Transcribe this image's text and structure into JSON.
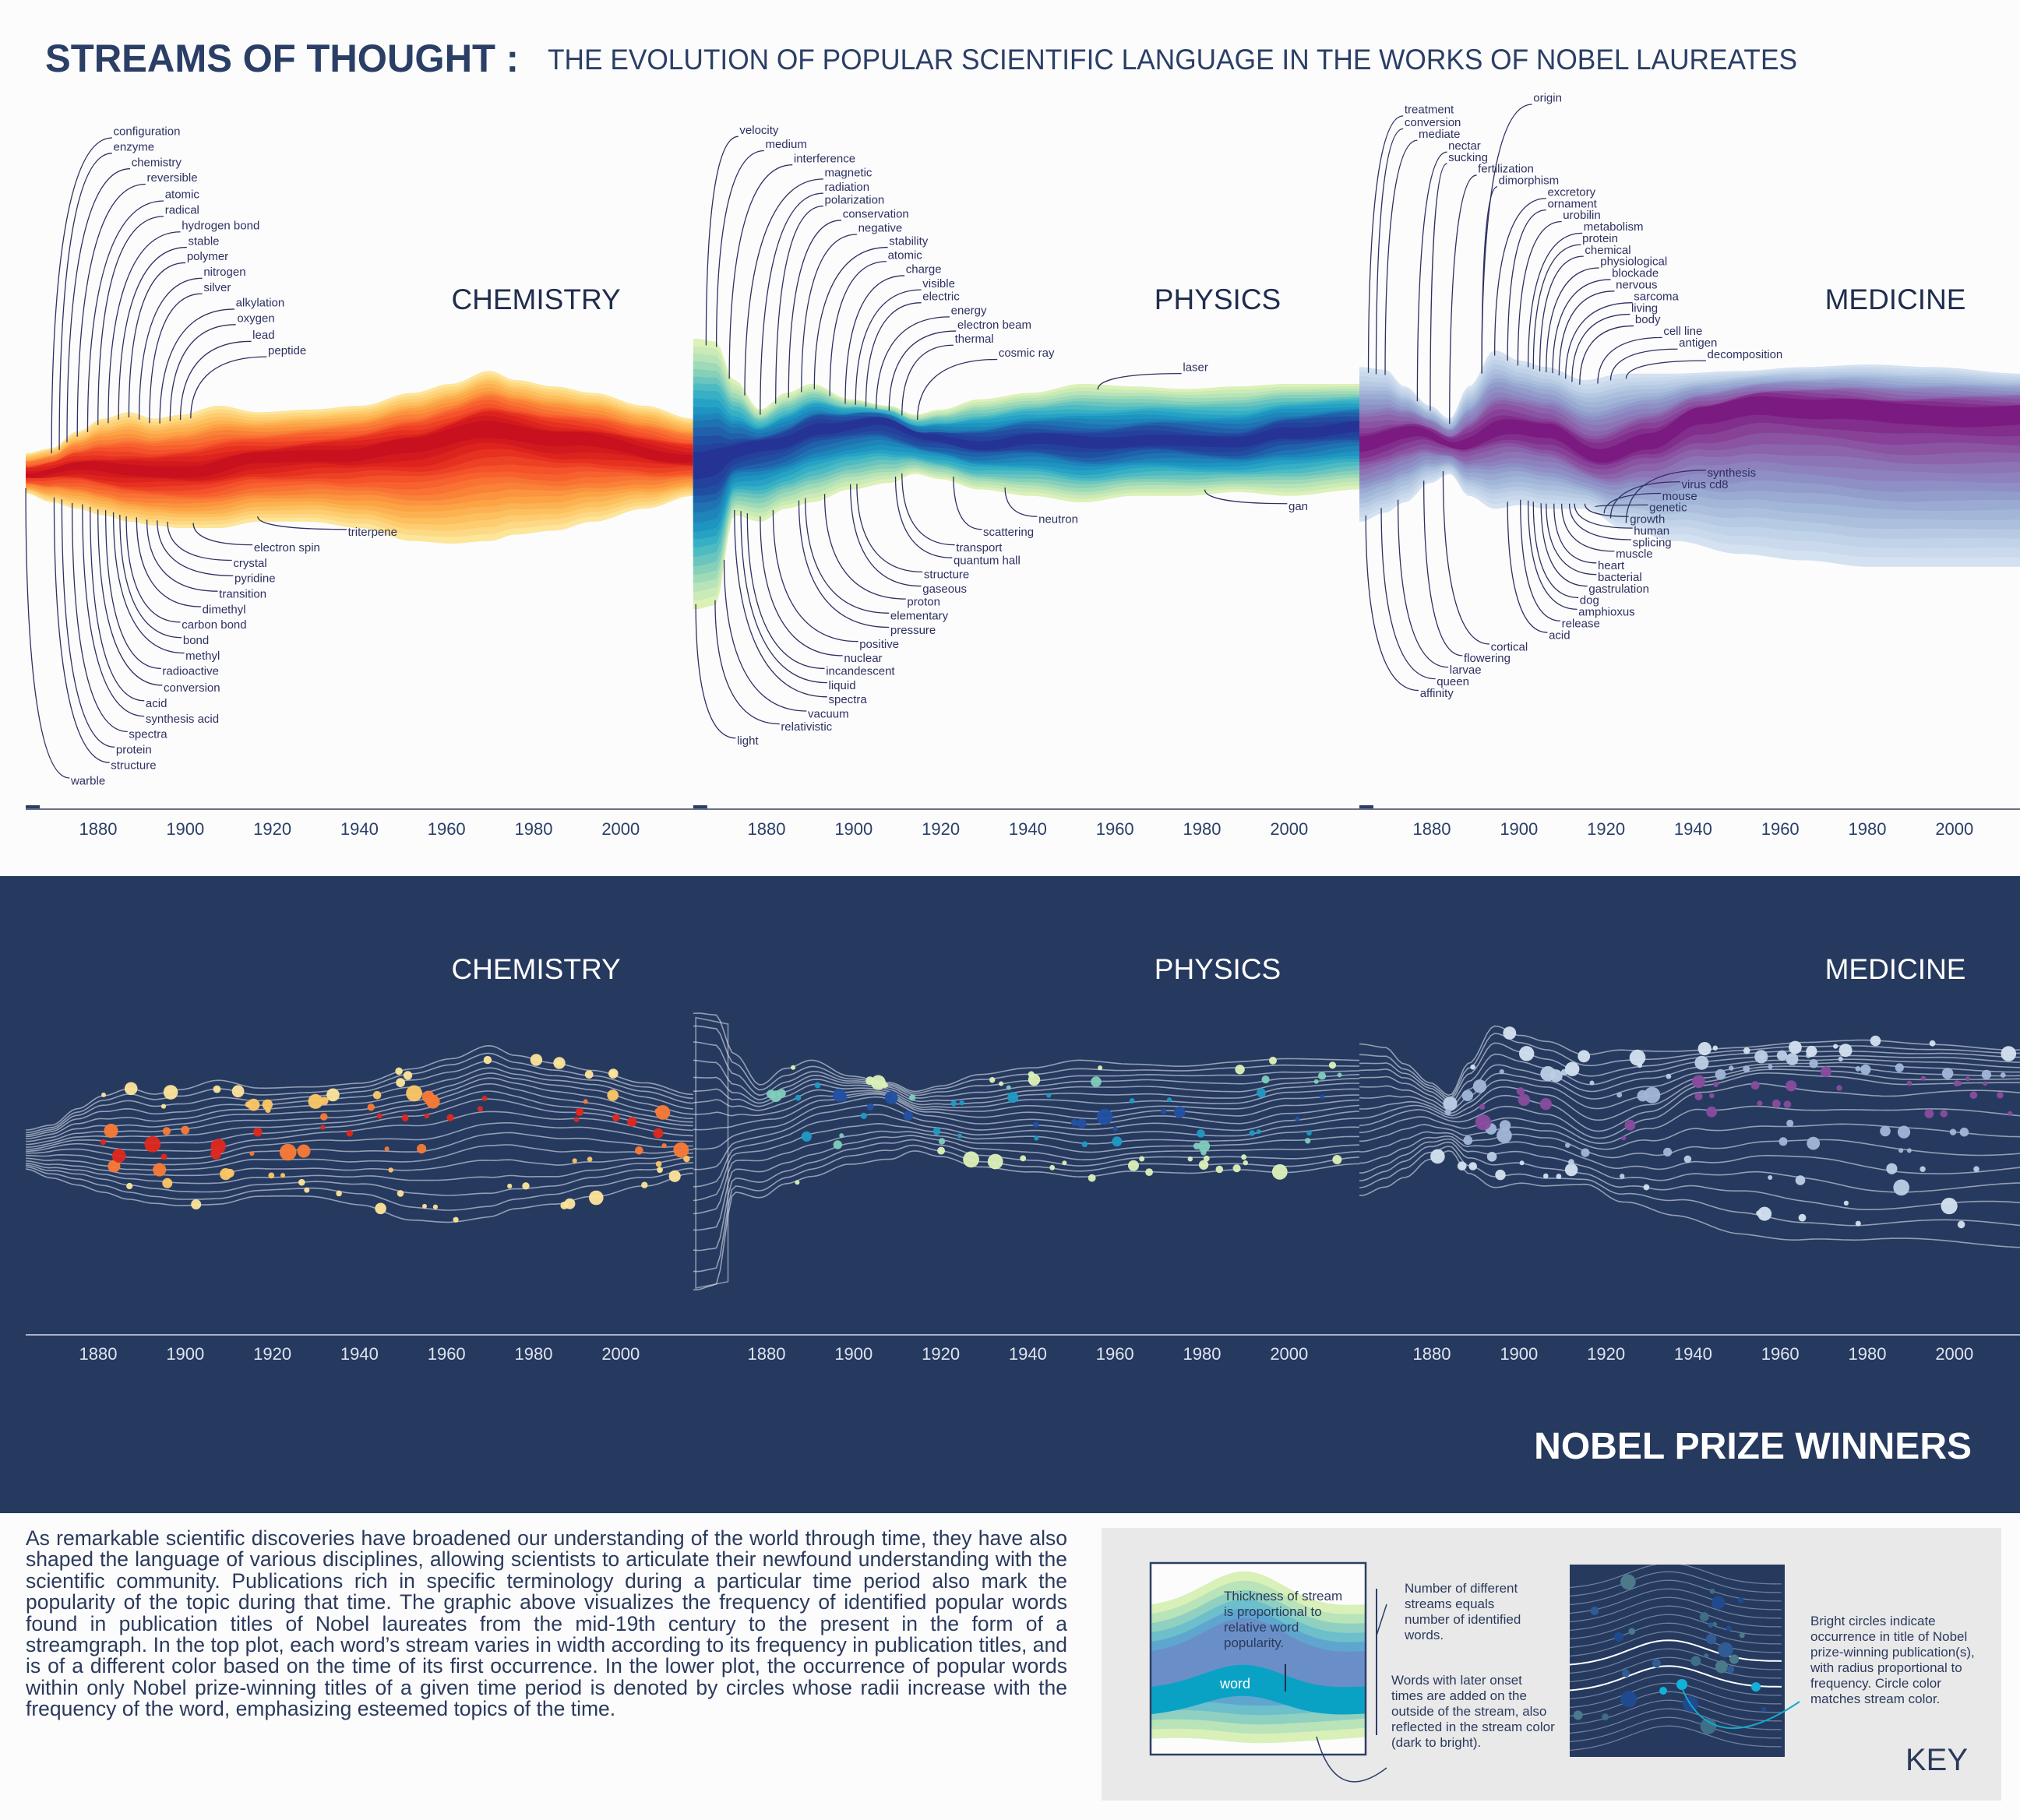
{
  "title": {
    "main": "STREAMS OF THOUGHT :",
    "subtitle": "THE EVOLUTION OF POPULAR SCIENTIFIC LANGUAGE IN THE WORKS OF NOBEL LAUREATES",
    "color": "#2b3f66"
  },
  "chart_data": [
    {
      "type": "area",
      "plot": "top",
      "title": "CHEMISTRY",
      "x_ticks": [
        1880,
        1900,
        1920,
        1940,
        1960,
        1980,
        2000
      ],
      "palette": [
        "#c8101e",
        "#e2281d",
        "#f5512a",
        "#fa7a35",
        "#fca445",
        "#fdc765",
        "#fde59a"
      ],
      "words_top": [
        "configuration",
        "enzyme",
        "chemistry",
        "reversible",
        "atomic",
        "radical",
        "hydrogen bond",
        "stable",
        "polymer",
        "nitrogen",
        "silver",
        "alkylation",
        "oxygen",
        "lead",
        "peptide"
      ],
      "words_bottom": [
        "triterpene",
        "electron spin",
        "crystal",
        "pyridine",
        "transition",
        "dimethyl",
        "carbon bond",
        "bond",
        "methyl",
        "radioactive",
        "conversion",
        "acid",
        "synthesis acid",
        "spectra",
        "protein",
        "structure",
        "warble"
      ]
    },
    {
      "type": "area",
      "plot": "top",
      "title": "PHYSICS",
      "x_ticks": [
        1880,
        1900,
        1920,
        1940,
        1960,
        1980,
        2000
      ],
      "palette": [
        "#253494",
        "#2250a3",
        "#1f78b4",
        "#1d9bc4",
        "#41b6c4",
        "#7fcdbb",
        "#b5e2b6",
        "#dcf1b8"
      ],
      "words_top": [
        "velocity",
        "medium",
        "interference",
        "magnetic",
        "radiation",
        "polarization",
        "conservation",
        "negative",
        "stability",
        "atomic",
        "charge",
        "visible",
        "electric",
        "energy",
        "electron beam",
        "thermal",
        "cosmic ray",
        "laser"
      ],
      "words_bottom": [
        "neutron",
        "gan",
        "scattering",
        "transport",
        "quantum hall",
        "structure",
        "gaseous",
        "proton",
        "elementary",
        "pressure",
        "positive",
        "nuclear",
        "incandescent",
        "liquid",
        "spectra",
        "vacuum",
        "relativistic",
        "light"
      ]
    },
    {
      "type": "area",
      "plot": "top",
      "title": "MEDICINE",
      "x_ticks": [
        1880,
        1900,
        1920,
        1940,
        1960,
        1980,
        2000
      ],
      "palette": [
        "#7b1a80",
        "#8a4c9e",
        "#8c74b6",
        "#8f97c9",
        "#a2b6d8",
        "#bccfe6",
        "#d4e1f0"
      ],
      "words_top": [
        "origin",
        "treatment",
        "conversion",
        "mediate",
        "nectar",
        "sucking",
        "fertilization",
        "dimorphism",
        "excretory",
        "ornament",
        "urobilin",
        "metabolism",
        "protein",
        "chemical",
        "physiological",
        "blockade",
        "nervous",
        "sarcoma",
        "living",
        "body",
        "cell line",
        "antigen",
        "decomposition"
      ],
      "words_bottom": [
        "synthesis",
        "virus cd8",
        "mouse",
        "genetic",
        "growth",
        "human",
        "splicing",
        "muscle",
        "heart",
        "bacterial",
        "gastrulation",
        "dog",
        "amphioxus",
        "release",
        "acid",
        "cortical",
        "flowering",
        "larvae",
        "queen",
        "affinity"
      ]
    },
    {
      "type": "scatter",
      "plot": "bottom",
      "title": "CHEMISTRY",
      "x_ticks": [
        1880,
        1900,
        1920,
        1940,
        1960,
        1980,
        2000
      ]
    },
    {
      "type": "scatter",
      "plot": "bottom",
      "title": "PHYSICS",
      "x_ticks": [
        1880,
        1900,
        1920,
        1940,
        1960,
        1980,
        2000
      ]
    },
    {
      "type": "scatter",
      "plot": "bottom",
      "title": "MEDICINE",
      "x_ticks": [
        1880,
        1900,
        1920,
        1940,
        1960,
        1980,
        2000
      ]
    }
  ],
  "lower_section": {
    "banner": "NOBEL PRIZE WINNERS",
    "background": "#263a5f"
  },
  "description": "As remarkable scientific discoveries have broadened our understanding of the world through time, they have also shaped the language of various disciplines, allowing scientists to articulate their newfound understanding with the scientific community. Publications rich in specific terminology during a particular time period also mark the popularity of the topic during that time. The graphic above visualizes the frequency of identified popular words found in publication titles of Nobel laureates from the mid-19th century to the present in the form of a streamgraph. In the top plot, each word’s stream varies in width according to its frequency in publication titles, and is of a different color based on the time of its first occurrence. In the lower plot, the occurrence of popular words within only Nobel prize-winning titles of a given time period is denoted by circles whose radii increase with the frequency of the word, emphasizing esteemed topics of the time.",
  "key": {
    "title": "KEY",
    "thickness_note": "Thickness of stream is proportional to relative word popularity.",
    "word_label": "word",
    "streams_note": "Number of different streams equals number of identified words.",
    "onset_note": "Words with later onset times are added on the outside of the stream, also reflected in the stream color (dark to bright).",
    "circles_note": "Bright circles indicate occurrence in title of Nobel prize-winning publication(s), with radius proportional to frequency. Circle color matches stream color."
  }
}
